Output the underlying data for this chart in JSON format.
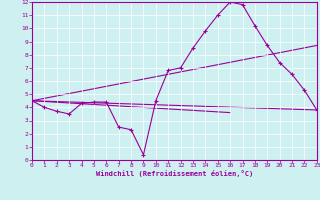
{
  "xlabel": "Windchill (Refroidissement éolien,°C)",
  "bg_color": "#cff0f0",
  "grid_color": "#ffffff",
  "line_color": "#990099",
  "xlim": [
    0,
    23
  ],
  "ylim": [
    0,
    12
  ],
  "xticks": [
    0,
    1,
    2,
    3,
    4,
    5,
    6,
    7,
    8,
    9,
    10,
    11,
    12,
    13,
    14,
    15,
    16,
    17,
    18,
    19,
    20,
    21,
    22,
    23
  ],
  "yticks": [
    0,
    1,
    2,
    3,
    4,
    5,
    6,
    7,
    8,
    9,
    10,
    11,
    12
  ],
  "main_series": {
    "x": [
      0,
      1,
      2,
      3,
      4,
      5,
      6,
      7,
      8,
      9,
      10,
      11,
      12,
      13,
      14,
      15,
      16,
      17,
      18,
      19,
      20,
      21,
      22,
      23
    ],
    "y": [
      4.5,
      4.0,
      3.7,
      3.5,
      4.3,
      4.4,
      4.4,
      2.5,
      2.3,
      0.4,
      4.5,
      6.8,
      7.0,
      8.5,
      9.8,
      11.0,
      12.0,
      11.8,
      10.2,
      8.7,
      7.4,
      6.5,
      5.3,
      3.8
    ]
  },
  "ref_lines": [
    {
      "x": [
        0,
        23
      ],
      "y": [
        4.5,
        3.8
      ]
    },
    {
      "x": [
        0,
        23
      ],
      "y": [
        4.5,
        8.7
      ]
    },
    {
      "x": [
        0,
        16
      ],
      "y": [
        4.5,
        3.6
      ]
    }
  ]
}
